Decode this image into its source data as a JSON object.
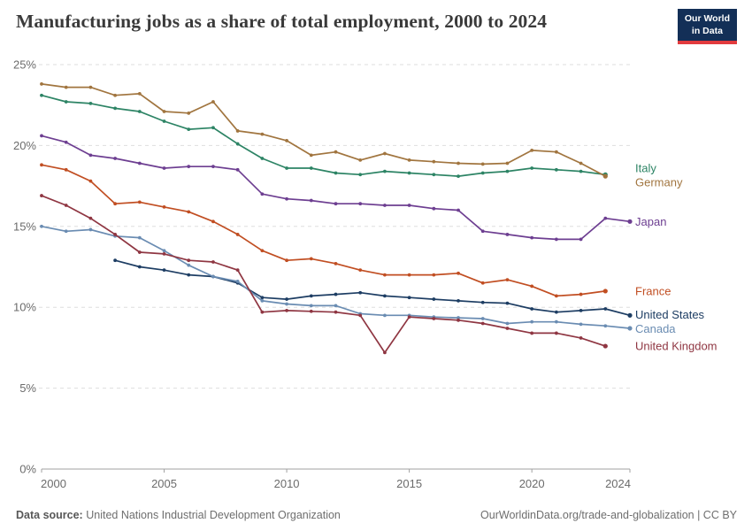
{
  "header": {
    "title": "Manufacturing jobs as a share of total employment, 2000 to 2024",
    "logo_line1": "Our World",
    "logo_line2": "in Data",
    "logo_bg": "#132f57",
    "logo_bar": "#e23b3e"
  },
  "footer": {
    "source_label": "Data source:",
    "source_value": "United Nations Industrial Development Organization",
    "credit": "OurWorldinData.org/trade-and-globalization | CC BY"
  },
  "chart_data": {
    "type": "line",
    "title": "Manufacturing jobs as a share of total employment, 2000 to 2024",
    "xlabel": "",
    "ylabel": "",
    "y_suffix": "%",
    "xlim": [
      2000,
      2024
    ],
    "ylim": [
      0,
      25.5
    ],
    "grid": "horizontal-dashed",
    "legend_position": "right-edge-labels",
    "x": [
      2000,
      2001,
      2002,
      2003,
      2004,
      2005,
      2006,
      2007,
      2008,
      2009,
      2010,
      2011,
      2012,
      2013,
      2014,
      2015,
      2016,
      2017,
      2018,
      2019,
      2020,
      2021,
      2022,
      2023,
      2024
    ],
    "x_ticks": [
      2000,
      2005,
      2010,
      2015,
      2020,
      2024
    ],
    "y_ticks": [
      0,
      5,
      10,
      15,
      20,
      25
    ],
    "series": [
      {
        "name": "Italy",
        "color": "#2d8465",
        "values": [
          23.1,
          22.7,
          22.6,
          22.3,
          22.1,
          21.5,
          21.0,
          21.1,
          20.1,
          19.2,
          18.6,
          18.6,
          18.3,
          18.2,
          18.4,
          18.3,
          18.2,
          18.1,
          18.3,
          18.4,
          18.6,
          18.5,
          18.4,
          18.2,
          null
        ]
      },
      {
        "name": "Germany",
        "color": "#a1753f",
        "values": [
          23.8,
          23.6,
          23.6,
          23.1,
          23.2,
          22.1,
          22.0,
          22.7,
          20.9,
          20.7,
          20.3,
          19.4,
          19.6,
          19.1,
          19.5,
          19.1,
          19.0,
          18.9,
          18.85,
          18.9,
          19.7,
          19.6,
          18.9,
          18.1,
          null
        ]
      },
      {
        "name": "Japan",
        "color": "#6d3e91",
        "values": [
          20.6,
          20.2,
          19.4,
          19.2,
          18.9,
          18.6,
          18.7,
          18.7,
          18.5,
          17.0,
          16.7,
          16.6,
          16.4,
          16.4,
          16.3,
          16.3,
          16.1,
          16.0,
          14.7,
          14.5,
          14.3,
          14.2,
          14.2,
          15.5,
          15.3
        ]
      },
      {
        "name": "France",
        "color": "#c14e22",
        "values": [
          18.8,
          18.5,
          17.8,
          16.4,
          16.5,
          16.2,
          15.9,
          15.3,
          14.5,
          13.5,
          12.9,
          13.0,
          12.7,
          12.3,
          12.0,
          12.0,
          12.0,
          12.1,
          11.5,
          11.7,
          11.3,
          10.7,
          10.8,
          11.0,
          null
        ]
      },
      {
        "name": "United States",
        "color": "#1d3d63",
        "values": [
          null,
          null,
          null,
          12.9,
          12.5,
          12.3,
          12.0,
          11.9,
          11.5,
          10.6,
          10.5,
          10.7,
          10.8,
          10.9,
          10.7,
          10.6,
          10.5,
          10.4,
          10.3,
          10.25,
          9.9,
          9.7,
          9.8,
          9.9,
          9.5
        ]
      },
      {
        "name": "Canada",
        "color": "#6a8cb2",
        "values": [
          15.0,
          14.7,
          14.8,
          14.4,
          14.3,
          13.5,
          12.6,
          11.9,
          11.6,
          10.4,
          10.2,
          10.1,
          10.1,
          9.6,
          9.5,
          9.5,
          9.4,
          9.35,
          9.3,
          9.0,
          9.1,
          9.1,
          8.95,
          8.85,
          8.7
        ]
      },
      {
        "name": "United Kingdom",
        "color": "#8f3642",
        "values": [
          16.9,
          16.3,
          15.5,
          14.5,
          13.4,
          13.3,
          12.9,
          12.8,
          12.3,
          9.7,
          9.8,
          9.75,
          9.7,
          9.5,
          7.2,
          9.4,
          9.3,
          9.2,
          9.0,
          8.7,
          8.4,
          8.4,
          8.1,
          7.6,
          null
        ]
      }
    ]
  }
}
